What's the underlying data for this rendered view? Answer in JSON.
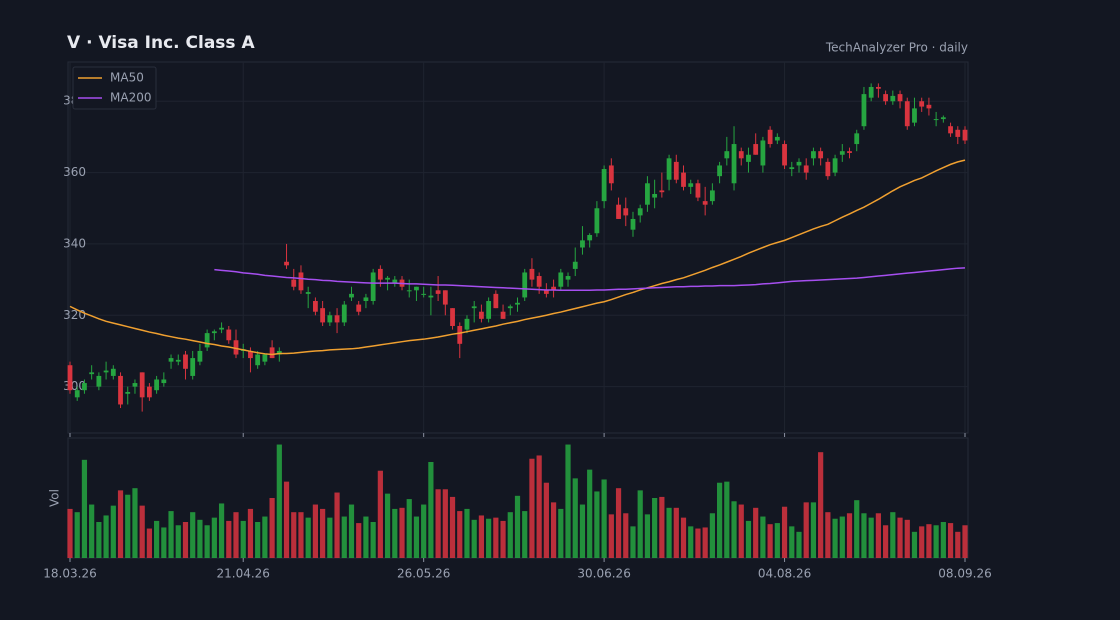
{
  "chart_data": {
    "type": "candlestick",
    "title": "V  ·  Visa Inc. Class A",
    "subtitle": "TechAnalyzer Pro · daily",
    "categories": [
      "18.03.26",
      null,
      null,
      null,
      null,
      null,
      null,
      null,
      null,
      null,
      null,
      null,
      null,
      null,
      null,
      null,
      null,
      null,
      null,
      null,
      null,
      null,
      null,
      null,
      "21.04.26",
      null,
      null,
      null,
      null,
      null,
      null,
      null,
      null,
      null,
      null,
      null,
      null,
      null,
      null,
      null,
      null,
      null,
      null,
      null,
      null,
      null,
      null,
      null,
      null,
      "26.05.26",
      null,
      null,
      null,
      null,
      null,
      null,
      null,
      null,
      null,
      null,
      null,
      null,
      null,
      null,
      null,
      null,
      null,
      null,
      null,
      null,
      null,
      null,
      null,
      null,
      "30.06.26",
      null,
      null,
      null,
      null,
      null,
      null,
      null,
      null,
      null,
      null,
      null,
      null,
      null,
      null,
      null,
      null,
      null,
      null,
      null,
      null,
      null,
      null,
      null,
      null,
      "04.08.26",
      null,
      null,
      null,
      null,
      null,
      null,
      null,
      null,
      null,
      null,
      null,
      null,
      null,
      null,
      null,
      null,
      null,
      null,
      null,
      null,
      null,
      null,
      null,
      null,
      "08.09.26"
    ],
    "open": [
      306,
      297,
      299,
      303.5,
      300,
      304,
      303,
      303,
      298,
      300,
      304,
      300,
      299,
      301,
      307,
      307,
      309,
      303,
      307,
      311,
      315,
      316,
      316,
      313,
      310,
      310,
      306,
      307,
      311,
      309,
      335,
      330,
      332,
      326,
      324,
      322,
      318,
      320,
      318,
      325,
      323,
      324,
      324,
      333,
      330,
      329,
      330,
      327,
      327,
      326,
      325,
      327,
      327,
      322,
      317,
      316,
      322,
      321,
      319,
      326,
      321,
      322,
      323,
      325,
      333,
      331,
      327,
      328,
      328,
      330,
      333,
      339,
      341,
      343,
      352,
      362,
      351,
      350,
      344,
      348,
      351,
      353,
      355,
      358,
      363,
      360,
      356,
      357,
      352,
      352,
      359,
      364,
      357,
      366,
      363,
      368,
      362,
      372,
      369,
      368,
      361,
      362,
      362,
      364,
      366,
      363,
      360,
      365,
      366,
      368,
      373,
      381,
      384,
      382,
      380,
      382,
      380,
      374,
      380,
      379,
      375,
      375,
      373,
      372,
      372
    ],
    "high": [
      307,
      300,
      302,
      306,
      304,
      307,
      306,
      304,
      300,
      302,
      304,
      301,
      303,
      304,
      309,
      309,
      310,
      310,
      312,
      316,
      316,
      318,
      317,
      316,
      312,
      311,
      310,
      309,
      313,
      311,
      340,
      333,
      334,
      328,
      325,
      324,
      321,
      322,
      324,
      328,
      324,
      326,
      333,
      334,
      331,
      331,
      331,
      330,
      328,
      328,
      328,
      331,
      327,
      322,
      318,
      320,
      324,
      323,
      325,
      327,
      323,
      323,
      325,
      333,
      336,
      332,
      329,
      330,
      333,
      332,
      339,
      345,
      343,
      352,
      362,
      364,
      353,
      353,
      349,
      351,
      359,
      358,
      360,
      365,
      365,
      362,
      358,
      358,
      356,
      357,
      363,
      370,
      373,
      367,
      367,
      371,
      370,
      373,
      371,
      369,
      363,
      364,
      364,
      367,
      367,
      364,
      365,
      368,
      367,
      372,
      384,
      385,
      385,
      383,
      383,
      383,
      381,
      381,
      381,
      381,
      377,
      376,
      374,
      373,
      373
    ],
    "low": [
      298,
      296,
      298,
      302,
      299,
      302,
      302,
      294,
      295,
      298,
      293,
      296,
      298,
      300,
      305,
      306,
      302,
      302,
      306,
      310,
      313,
      315,
      312,
      308,
      308,
      304,
      305,
      306,
      308,
      307,
      333,
      327,
      326,
      322,
      320,
      317,
      317,
      315,
      317,
      324,
      320,
      322,
      323,
      328,
      327,
      328,
      327,
      325,
      324,
      325,
      320,
      324,
      320,
      316,
      308,
      315,
      318,
      318,
      318,
      322,
      319,
      320,
      321,
      324,
      328,
      326,
      325,
      325,
      327,
      328,
      331,
      337,
      339,
      342,
      350,
      355,
      347,
      345,
      342,
      346,
      349,
      350,
      353,
      355,
      357,
      355,
      354,
      352,
      348,
      351,
      357,
      362,
      355,
      362,
      360,
      365,
      360,
      367,
      368,
      361,
      359,
      360,
      358,
      362,
      362,
      358,
      359,
      363,
      364,
      366,
      372,
      380,
      381,
      379,
      379,
      378,
      372,
      373,
      377,
      376,
      373,
      374,
      370,
      368,
      368
    ],
    "close": [
      299,
      299,
      301,
      304,
      303,
      304.5,
      305,
      295,
      298.5,
      301,
      297,
      297,
      302,
      302,
      308,
      307.5,
      305,
      308,
      310,
      315,
      315.5,
      316.5,
      313,
      309,
      310.5,
      308,
      309,
      309,
      308,
      310,
      334,
      328,
      327,
      326.5,
      321,
      318,
      320,
      318,
      323,
      326,
      321,
      325,
      332,
      330,
      330.5,
      330,
      328,
      327,
      328,
      326,
      325.5,
      326,
      323,
      317,
      312,
      319,
      322.5,
      319,
      324,
      322,
      319,
      322.5,
      323.5,
      332,
      330,
      328,
      326,
      327,
      332,
      331,
      335,
      341,
      342.5,
      350,
      361,
      357,
      347,
      348,
      347,
      350,
      357,
      354,
      354.5,
      364,
      358,
      356,
      357,
      353,
      351,
      355,
      362,
      366,
      368,
      364,
      365,
      365,
      369,
      368,
      370,
      362,
      361.5,
      363,
      360,
      366,
      364,
      359,
      364,
      366,
      365.5,
      371,
      382,
      384,
      383.5,
      380,
      381.5,
      380,
      373,
      378,
      378.5,
      378,
      375,
      375.5,
      371,
      370,
      369
    ],
    "up_color": "#26a641",
    "down_color": "#d9343f",
    "ylim": [
      287,
      391
    ],
    "yticks": [
      300,
      320,
      340,
      360,
      380
    ],
    "grid": true,
    "legend": "upper left",
    "series": [
      {
        "name": "MA50",
        "color": "#f0a030",
        "values": [
          322.5,
          321.5,
          320.6,
          319.8,
          319.0,
          318.3,
          317.8,
          317.3,
          316.8,
          316.3,
          315.8,
          315.3,
          314.9,
          314.4,
          314.0,
          313.6,
          313.3,
          312.9,
          312.5,
          312.1,
          311.8,
          311.4,
          311.1,
          310.7,
          310.3,
          309.9,
          309.5,
          309.2,
          309.0,
          309.3,
          309.3,
          309.4,
          309.6,
          309.8,
          310.0,
          310.1,
          310.3,
          310.4,
          310.5,
          310.6,
          310.8,
          311.1,
          311.4,
          311.7,
          312.0,
          312.3,
          312.6,
          312.9,
          313.1,
          313.3,
          313.6,
          313.9,
          314.3,
          314.7,
          315.0,
          315.4,
          315.8,
          316.2,
          316.6,
          317.0,
          317.5,
          317.9,
          318.3,
          318.8,
          319.2,
          319.6,
          320.0,
          320.5,
          320.9,
          321.4,
          321.9,
          322.4,
          322.9,
          323.4,
          323.8,
          324.4,
          325.1,
          325.8,
          326.4,
          327.1,
          327.7,
          328.3,
          328.9,
          329.4,
          330.0,
          330.5,
          331.2,
          331.9,
          332.6,
          333.4,
          334.1,
          334.9,
          335.7,
          336.5,
          337.4,
          338.2,
          339.0,
          339.8,
          340.4,
          341.0,
          341.8,
          342.6,
          343.4,
          344.2,
          344.9,
          345.5,
          346.5,
          347.5,
          348.4,
          349.4,
          350.3,
          351.4,
          352.5,
          353.7,
          354.9,
          356.0,
          356.9,
          357.8,
          358.5,
          359.5,
          360.5,
          361.4,
          362.3,
          363.0,
          363.5
        ]
      },
      {
        "name": "MA200",
        "color": "#a64ff0",
        "values": [
          null,
          null,
          null,
          null,
          null,
          null,
          null,
          null,
          null,
          null,
          null,
          null,
          null,
          null,
          null,
          null,
          null,
          null,
          null,
          null,
          332.8,
          332.6,
          332.4,
          332.2,
          331.9,
          331.7,
          331.5,
          331.2,
          331.0,
          330.8,
          330.6,
          330.5,
          330.3,
          330.1,
          330.0,
          329.8,
          329.7,
          329.5,
          329.4,
          329.3,
          329.2,
          329.1,
          329.0,
          329.0,
          329.0,
          329.0,
          328.9,
          328.8,
          328.8,
          328.7,
          328.6,
          328.5,
          328.5,
          328.4,
          328.3,
          328.2,
          328.1,
          328.0,
          327.9,
          327.8,
          327.7,
          327.6,
          327.5,
          327.4,
          327.3,
          327.2,
          327.1,
          327.1,
          327.0,
          327.0,
          327.0,
          327.0,
          327.0,
          327.1,
          327.1,
          327.2,
          327.3,
          327.3,
          327.4,
          327.5,
          327.6,
          327.7,
          327.8,
          327.9,
          328.0,
          328.0,
          328.1,
          328.1,
          328.2,
          328.2,
          328.3,
          328.3,
          328.3,
          328.4,
          328.5,
          328.6,
          328.8,
          328.9,
          329.1,
          329.3,
          329.5,
          329.6,
          329.7,
          329.8,
          329.9,
          330.0,
          330.1,
          330.2,
          330.3,
          330.4,
          330.6,
          330.8,
          331.0,
          331.2,
          331.4,
          331.6,
          331.8,
          332.0,
          332.2,
          332.4,
          332.6,
          332.8,
          333.0,
          333.2,
          333.3
        ]
      }
    ],
    "volume": {
      "label": "Vol",
      "ylim": [
        0,
        110
      ],
      "values": [
        45,
        42,
        90,
        49,
        33,
        39,
        48,
        62,
        58,
        64,
        48,
        27,
        34,
        28,
        43,
        30,
        33,
        42,
        35,
        30,
        37,
        50,
        34,
        42,
        34,
        45,
        33,
        38,
        55,
        104,
        70,
        42,
        42,
        37,
        49,
        45,
        37,
        60,
        38,
        49,
        32,
        38,
        33,
        80,
        59,
        45,
        46,
        54,
        38,
        49,
        88,
        63,
        63,
        56,
        43,
        45,
        35,
        39,
        36,
        37,
        34,
        42,
        57,
        43,
        91,
        94,
        69,
        51,
        45,
        104,
        73,
        49,
        81,
        61,
        72,
        40,
        64,
        41,
        29,
        62,
        40,
        55,
        56,
        46,
        46,
        37,
        29,
        27,
        28,
        41,
        69,
        70,
        52,
        49,
        34,
        46,
        38,
        31,
        32,
        47,
        29,
        24,
        51,
        51,
        97,
        42,
        36,
        38,
        41,
        53,
        41,
        37,
        41,
        30,
        42,
        37,
        35,
        24,
        29,
        31,
        30,
        33,
        32,
        24,
        30
      ]
    }
  }
}
